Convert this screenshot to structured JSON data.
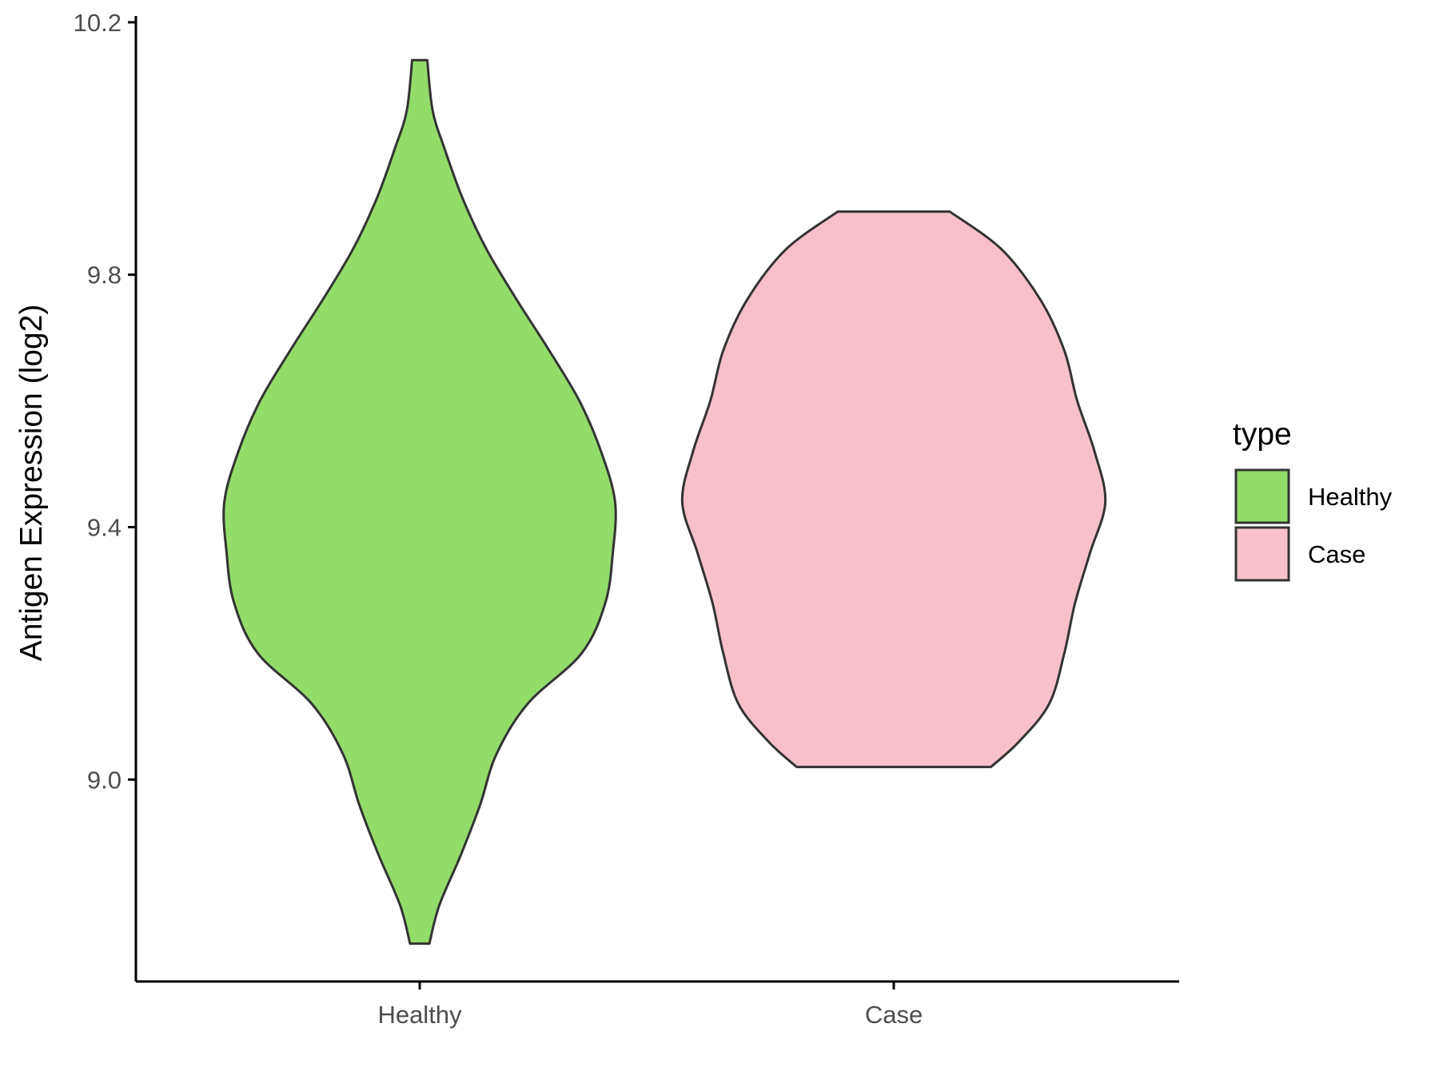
{
  "chart_data": {
    "type": "violin",
    "ylabel": "Antigen Expression (log2)",
    "xlabel": "",
    "ylim": [
      8.68,
      10.21
    ],
    "yticks": [
      9.0,
      9.4,
      9.8,
      10.2
    ],
    "ytick_labels": [
      "9.0",
      "9.4",
      "9.8",
      "10.2"
    ],
    "categories": [
      "Healthy",
      "Case"
    ],
    "grid": false,
    "legend": {
      "title": "type",
      "position": "right",
      "entries": [
        "Healthy",
        "Case"
      ]
    },
    "series": [
      {
        "name": "Healthy",
        "color": "#93dc6a",
        "min": 8.74,
        "max": 10.14,
        "profile": [
          [
            8.74,
            0.045
          ],
          [
            8.8,
            0.09
          ],
          [
            8.88,
            0.19
          ],
          [
            8.96,
            0.28
          ],
          [
            9.04,
            0.355
          ],
          [
            9.12,
            0.5
          ],
          [
            9.2,
            0.75
          ],
          [
            9.28,
            0.86
          ],
          [
            9.36,
            0.895
          ],
          [
            9.44,
            0.905
          ],
          [
            9.52,
            0.84
          ],
          [
            9.6,
            0.74
          ],
          [
            9.68,
            0.6
          ],
          [
            9.76,
            0.45
          ],
          [
            9.84,
            0.31
          ],
          [
            9.92,
            0.2
          ],
          [
            10.0,
            0.115
          ],
          [
            10.06,
            0.06
          ],
          [
            10.14,
            0.035
          ]
        ]
      },
      {
        "name": "Case",
        "color": "#f8c0cb",
        "min": 9.02,
        "max": 9.9,
        "profile": [
          [
            9.02,
            0.45
          ],
          [
            9.06,
            0.58
          ],
          [
            9.12,
            0.72
          ],
          [
            9.2,
            0.79
          ],
          [
            9.28,
            0.84
          ],
          [
            9.36,
            0.91
          ],
          [
            9.44,
            0.98
          ],
          [
            9.52,
            0.93
          ],
          [
            9.6,
            0.85
          ],
          [
            9.68,
            0.79
          ],
          [
            9.76,
            0.68
          ],
          [
            9.84,
            0.5
          ],
          [
            9.9,
            0.26
          ]
        ]
      }
    ]
  }
}
